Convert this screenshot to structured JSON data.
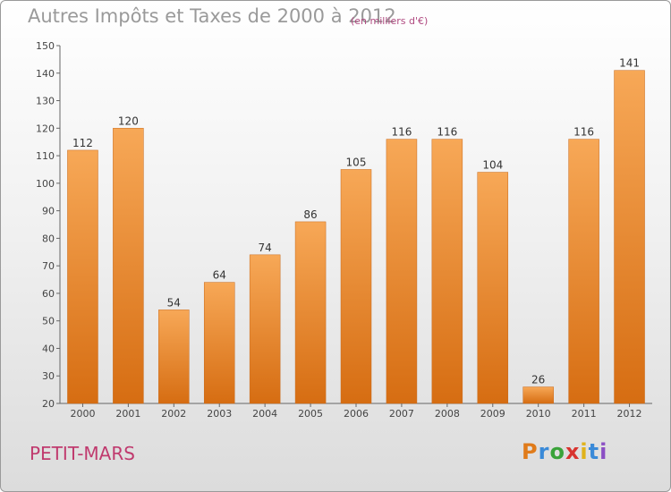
{
  "title": "Autres Impôts et Taxes de 2000 à 2012",
  "subtitle": "(en milliers d'€)",
  "commune": "PETIT-MARS",
  "logo": {
    "letters": [
      "P",
      "r",
      "o",
      "x",
      "i",
      "t",
      "i"
    ],
    "colors": [
      "#e07b1a",
      "#3a8ad8",
      "#3aa33a",
      "#d8342f",
      "#e0b21a",
      "#3a8ad8",
      "#8b4fc4"
    ]
  },
  "colors": {
    "bar_top": "#f7a857",
    "bar_bottom": "#d66d12",
    "accent": "#c03a6e"
  },
  "chart_data": {
    "type": "bar",
    "categories": [
      "2000",
      "2001",
      "2002",
      "2003",
      "2004",
      "2005",
      "2006",
      "2007",
      "2008",
      "2009",
      "2010",
      "2011",
      "2012"
    ],
    "values": [
      112,
      120,
      54,
      64,
      74,
      86,
      105,
      116,
      116,
      104,
      26,
      116,
      141
    ],
    "ylim": [
      20,
      150
    ],
    "yticks": [
      20,
      30,
      40,
      50,
      60,
      70,
      80,
      90,
      100,
      110,
      120,
      130,
      140,
      150
    ],
    "grid": false
  }
}
